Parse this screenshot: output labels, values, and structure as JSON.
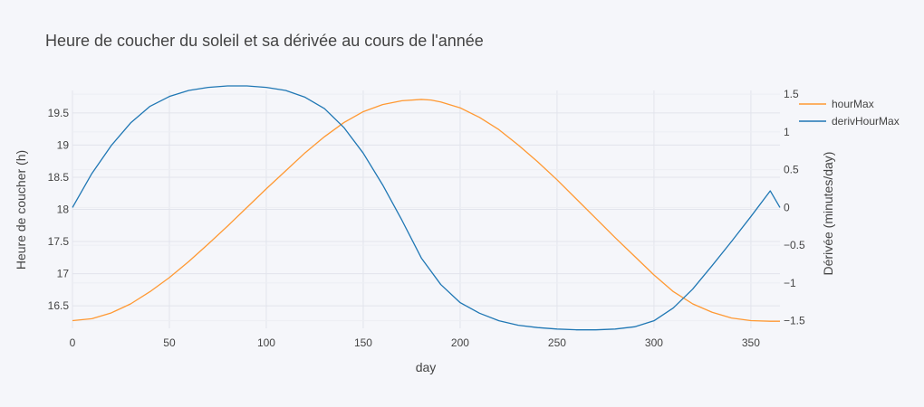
{
  "chart_data": {
    "type": "line",
    "title": "Heure de coucher du soleil et sa dérivée au cours de l'année",
    "xlabel": "day",
    "ylabel": "Heure de coucher (h)",
    "y2label": "Dérivée (minutes/day)",
    "xlim": [
      0,
      365
    ],
    "ylim": [
      16.15,
      19.85
    ],
    "y2lim": [
      -1.6,
      1.55
    ],
    "x_ticks": [
      0,
      50,
      100,
      150,
      200,
      250,
      300,
      350
    ],
    "y_ticks": [
      16.5,
      17,
      17.5,
      18,
      18.5,
      19,
      19.5
    ],
    "y_tick_labels": [
      "16.5",
      "17",
      "17.5",
      "18",
      "18.5",
      "19",
      "19.5"
    ],
    "y2_ticks": [
      -1.5,
      -1,
      -0.5,
      0,
      0.5,
      1,
      1.5
    ],
    "y2_tick_labels": [
      "−1.5",
      "−1",
      "−0.5",
      "0",
      "0.5",
      "1",
      "1.5"
    ],
    "grid": true,
    "legend_position": "top-right",
    "series": [
      {
        "name": "hourMax",
        "axis": "y",
        "color": "#ff9933",
        "x": [
          0,
          10,
          20,
          30,
          40,
          50,
          60,
          70,
          80,
          90,
          100,
          110,
          120,
          130,
          140,
          150,
          160,
          170,
          180,
          185,
          190,
          200,
          210,
          220,
          230,
          240,
          250,
          260,
          270,
          280,
          290,
          300,
          310,
          320,
          330,
          340,
          350,
          360,
          365
        ],
        "y": [
          16.27,
          16.3,
          16.39,
          16.53,
          16.72,
          16.94,
          17.19,
          17.46,
          17.74,
          18.03,
          18.32,
          18.6,
          18.88,
          19.13,
          19.35,
          19.52,
          19.63,
          19.69,
          19.71,
          19.7,
          19.67,
          19.58,
          19.43,
          19.24,
          19.0,
          18.74,
          18.46,
          18.16,
          17.86,
          17.56,
          17.27,
          16.98,
          16.72,
          16.53,
          16.4,
          16.31,
          16.27,
          16.26,
          16.26
        ]
      },
      {
        "name": "derivHourMax",
        "axis": "y2",
        "color": "#1f77b4",
        "x": [
          0,
          10,
          20,
          30,
          40,
          50,
          60,
          70,
          80,
          90,
          100,
          110,
          120,
          130,
          140,
          150,
          160,
          170,
          180,
          190,
          200,
          210,
          220,
          230,
          240,
          250,
          260,
          270,
          280,
          290,
          300,
          310,
          320,
          330,
          340,
          350,
          360,
          365
        ],
        "y": [
          0.0,
          0.45,
          0.82,
          1.12,
          1.34,
          1.47,
          1.55,
          1.59,
          1.61,
          1.61,
          1.59,
          1.55,
          1.46,
          1.31,
          1.06,
          0.72,
          0.3,
          -0.17,
          -0.67,
          -1.02,
          -1.26,
          -1.4,
          -1.5,
          -1.56,
          -1.59,
          -1.61,
          -1.62,
          -1.62,
          -1.61,
          -1.58,
          -1.5,
          -1.33,
          -1.08,
          -0.77,
          -0.45,
          -0.12,
          0.22,
          0.0
        ]
      }
    ]
  }
}
